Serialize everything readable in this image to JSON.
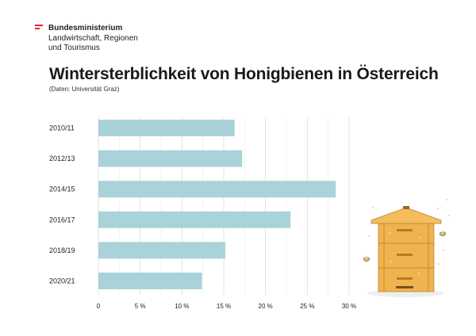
{
  "ministry": {
    "line1": "Bundesministerium",
    "line2": "Landwirtschaft, Regionen",
    "line3": "und Tourismus"
  },
  "heading": {
    "title": "Wintersterblichkeit von Honigbienen in Österreich",
    "source": "(Daten: Universität Graz)"
  },
  "colors": {
    "bar": "#a9d3d9",
    "grid": "#d8d8d8",
    "accent": "#e1232b"
  },
  "chart_data": {
    "type": "bar",
    "orientation": "horizontal",
    "categories": [
      "2010/11",
      "2012/13",
      "2014/15",
      "2016/17",
      "2018/19",
      "2020/21"
    ],
    "values": [
      16.3,
      17.2,
      28.4,
      23.0,
      15.2,
      12.4
    ],
    "xlim": [
      0,
      30
    ],
    "ticks": [
      0,
      5,
      10,
      15,
      20,
      25,
      30
    ],
    "tick_labels": [
      "0",
      "5 %",
      "10 %",
      "15 %",
      "20 %",
      "25 %",
      "30 %"
    ],
    "grid": true
  },
  "illustration": {
    "icon": "beehive-icon"
  }
}
